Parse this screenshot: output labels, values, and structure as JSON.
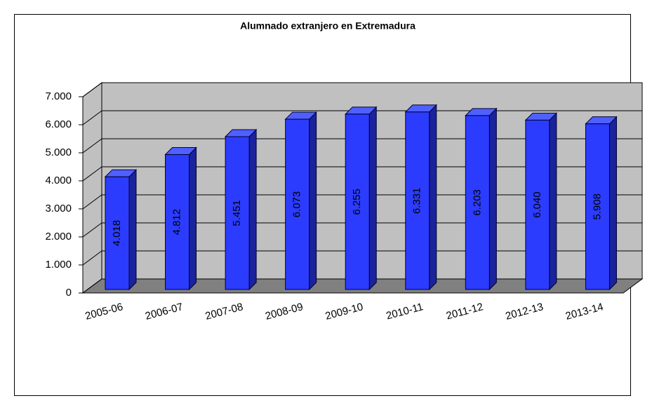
{
  "chart_data": {
    "type": "bar3d",
    "title": "Alumnado extranjero en Extremadura",
    "categories": [
      "2005-06",
      "2006-07",
      "2007-08",
      "2008-09",
      "2009-10",
      "2010-11",
      "2011-12",
      "2012-13",
      "2013-14"
    ],
    "values": [
      4018,
      4812,
      5451,
      6073,
      6255,
      6331,
      6203,
      6040,
      5908
    ],
    "value_labels": [
      "4.018",
      "4.812",
      "5.451",
      "6.073",
      "6.255",
      "6.331",
      "6.203",
      "6.040",
      "5.908"
    ],
    "color": "#2b3cff",
    "ylim": [
      0,
      7000
    ],
    "yticks": [
      0,
      {
        "value": 1000,
        "label": "1.000"
      },
      {
        "value": 2000,
        "label": "2.000"
      },
      {
        "value": 3000,
        "label": "3.000"
      },
      {
        "value": 4000,
        "label": "4.000"
      },
      {
        "value": 5000,
        "label": "5.000"
      },
      {
        "value": 6000,
        "label": "6.000"
      },
      {
        "value": 7000,
        "label": "7.000"
      }
    ],
    "grid": true
  }
}
